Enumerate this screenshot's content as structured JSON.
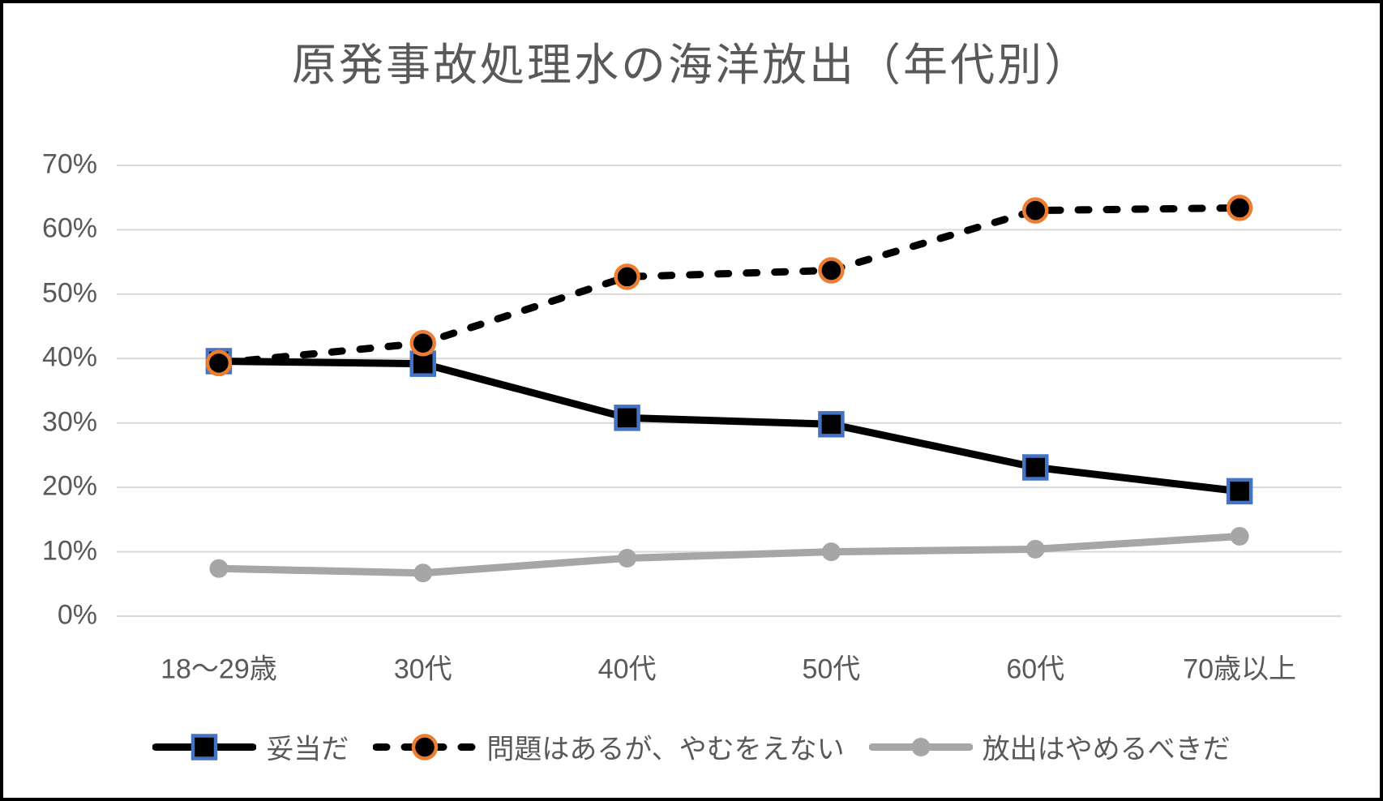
{
  "chart_data": {
    "type": "line",
    "title": "原発事故処理水の海洋放出（年代別）",
    "categories": [
      "18〜29歳",
      "30代",
      "40代",
      "50代",
      "60代",
      "70歳以上"
    ],
    "series": [
      {
        "name": "妥当だ",
        "values": [
          39.6,
          39.2,
          30.8,
          29.8,
          23.1,
          19.4
        ],
        "line_color": "#000000",
        "line_style": "solid",
        "marker": "square",
        "marker_fill": "#000000",
        "marker_border": "#4472C4"
      },
      {
        "name": "問題はあるが、やむをえない",
        "values": [
          39.3,
          42.4,
          52.7,
          53.7,
          63.0,
          63.4
        ],
        "line_color": "#000000",
        "line_style": "dashed",
        "marker": "circle",
        "marker_fill": "#000000",
        "marker_border": "#ED7D31"
      },
      {
        "name": "放出はやめるべきだ",
        "values": [
          7.4,
          6.7,
          9.0,
          10.0,
          10.4,
          12.4
        ],
        "line_color": "#A6A6A6",
        "line_style": "solid",
        "marker": "circle",
        "marker_fill": "#A6A6A6",
        "marker_border": "#A6A6A6"
      }
    ],
    "yticks": [
      "70%",
      "60%",
      "50%",
      "40%",
      "30%",
      "20%",
      "10%",
      "0%"
    ],
    "ylim": [
      0,
      70
    ],
    "ytick_step": 10,
    "grid": "horizontal",
    "gridline_color": "#D9D9D9",
    "text_color": "#595959",
    "background": "#FFFFFF",
    "frame_border_color": "#000000",
    "legend_position": "bottom"
  }
}
